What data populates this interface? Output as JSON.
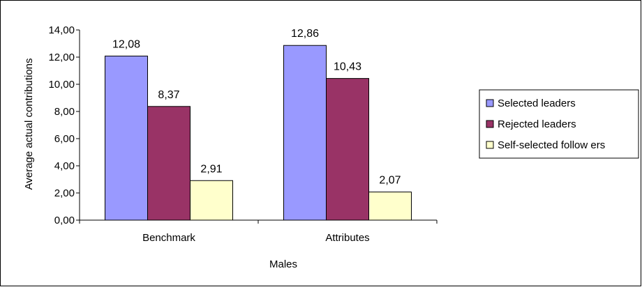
{
  "chart_data": {
    "type": "bar",
    "categories": [
      "Benchmark",
      "Attributes"
    ],
    "series": [
      {
        "name": "Selected leaders",
        "values": [
          12.08,
          12.86
        ],
        "labels": [
          "12,08",
          "12,86"
        ],
        "color": "#9999ff"
      },
      {
        "name": "Rejected leaders",
        "values": [
          8.37,
          10.43
        ],
        "labels": [
          "8,37",
          "10,43"
        ],
        "color": "#993366"
      },
      {
        "name": "Self-selected follow ers",
        "values": [
          2.91,
          2.07
        ],
        "labels": [
          "2,91",
          "2,07"
        ],
        "color": "#ffffcc"
      }
    ],
    "xlabel": "Males",
    "ylabel": "Average actual contributions",
    "ylim": [
      0,
      14
    ],
    "yticks": [
      "0,00",
      "2,00",
      "4,00",
      "6,00",
      "8,00",
      "10,00",
      "12,00",
      "14,00"
    ],
    "grid": false,
    "legend": "right"
  }
}
